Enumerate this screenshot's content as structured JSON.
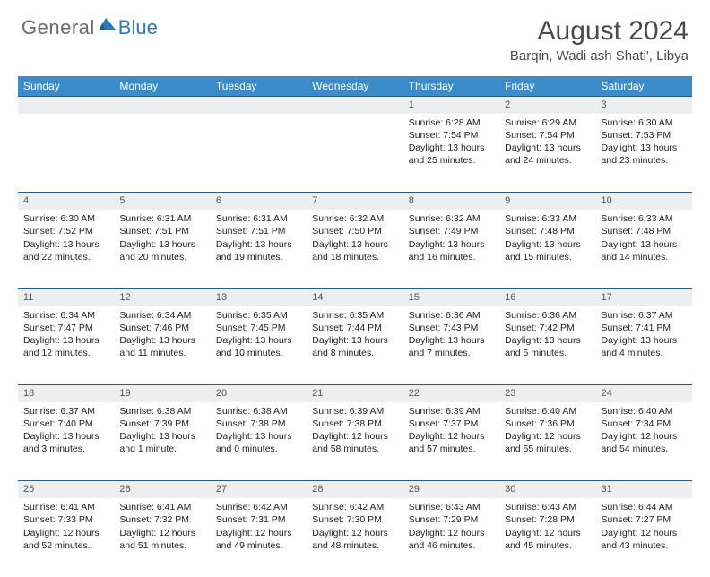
{
  "brand": {
    "part1": "General",
    "part2": "Blue"
  },
  "title": "August 2024",
  "location": "Barqin, Wadi ash Shati', Libya",
  "colors": {
    "header_bg": "#3a8bc9",
    "header_text": "#ffffff",
    "daynum_bg": "#eceeef",
    "row_divider": "#2a5b84",
    "brand_gray": "#6b6b6b",
    "brand_blue": "#2a7ab9"
  },
  "weekdays": [
    "Sunday",
    "Monday",
    "Tuesday",
    "Wednesday",
    "Thursday",
    "Friday",
    "Saturday"
  ],
  "weeks": [
    [
      null,
      null,
      null,
      null,
      {
        "n": "1",
        "sunrise": "6:28 AM",
        "sunset": "7:54 PM",
        "daylight": "13 hours and 25 minutes."
      },
      {
        "n": "2",
        "sunrise": "6:29 AM",
        "sunset": "7:54 PM",
        "daylight": "13 hours and 24 minutes."
      },
      {
        "n": "3",
        "sunrise": "6:30 AM",
        "sunset": "7:53 PM",
        "daylight": "13 hours and 23 minutes."
      }
    ],
    [
      {
        "n": "4",
        "sunrise": "6:30 AM",
        "sunset": "7:52 PM",
        "daylight": "13 hours and 22 minutes."
      },
      {
        "n": "5",
        "sunrise": "6:31 AM",
        "sunset": "7:51 PM",
        "daylight": "13 hours and 20 minutes."
      },
      {
        "n": "6",
        "sunrise": "6:31 AM",
        "sunset": "7:51 PM",
        "daylight": "13 hours and 19 minutes."
      },
      {
        "n": "7",
        "sunrise": "6:32 AM",
        "sunset": "7:50 PM",
        "daylight": "13 hours and 18 minutes."
      },
      {
        "n": "8",
        "sunrise": "6:32 AM",
        "sunset": "7:49 PM",
        "daylight": "13 hours and 16 minutes."
      },
      {
        "n": "9",
        "sunrise": "6:33 AM",
        "sunset": "7:48 PM",
        "daylight": "13 hours and 15 minutes."
      },
      {
        "n": "10",
        "sunrise": "6:33 AM",
        "sunset": "7:48 PM",
        "daylight": "13 hours and 14 minutes."
      }
    ],
    [
      {
        "n": "11",
        "sunrise": "6:34 AM",
        "sunset": "7:47 PM",
        "daylight": "13 hours and 12 minutes."
      },
      {
        "n": "12",
        "sunrise": "6:34 AM",
        "sunset": "7:46 PM",
        "daylight": "13 hours and 11 minutes."
      },
      {
        "n": "13",
        "sunrise": "6:35 AM",
        "sunset": "7:45 PM",
        "daylight": "13 hours and 10 minutes."
      },
      {
        "n": "14",
        "sunrise": "6:35 AM",
        "sunset": "7:44 PM",
        "daylight": "13 hours and 8 minutes."
      },
      {
        "n": "15",
        "sunrise": "6:36 AM",
        "sunset": "7:43 PM",
        "daylight": "13 hours and 7 minutes."
      },
      {
        "n": "16",
        "sunrise": "6:36 AM",
        "sunset": "7:42 PM",
        "daylight": "13 hours and 5 minutes."
      },
      {
        "n": "17",
        "sunrise": "6:37 AM",
        "sunset": "7:41 PM",
        "daylight": "13 hours and 4 minutes."
      }
    ],
    [
      {
        "n": "18",
        "sunrise": "6:37 AM",
        "sunset": "7:40 PM",
        "daylight": "13 hours and 3 minutes."
      },
      {
        "n": "19",
        "sunrise": "6:38 AM",
        "sunset": "7:39 PM",
        "daylight": "13 hours and 1 minute."
      },
      {
        "n": "20",
        "sunrise": "6:38 AM",
        "sunset": "7:38 PM",
        "daylight": "13 hours and 0 minutes."
      },
      {
        "n": "21",
        "sunrise": "6:39 AM",
        "sunset": "7:38 PM",
        "daylight": "12 hours and 58 minutes."
      },
      {
        "n": "22",
        "sunrise": "6:39 AM",
        "sunset": "7:37 PM",
        "daylight": "12 hours and 57 minutes."
      },
      {
        "n": "23",
        "sunrise": "6:40 AM",
        "sunset": "7:36 PM",
        "daylight": "12 hours and 55 minutes."
      },
      {
        "n": "24",
        "sunrise": "6:40 AM",
        "sunset": "7:34 PM",
        "daylight": "12 hours and 54 minutes."
      }
    ],
    [
      {
        "n": "25",
        "sunrise": "6:41 AM",
        "sunset": "7:33 PM",
        "daylight": "12 hours and 52 minutes."
      },
      {
        "n": "26",
        "sunrise": "6:41 AM",
        "sunset": "7:32 PM",
        "daylight": "12 hours and 51 minutes."
      },
      {
        "n": "27",
        "sunrise": "6:42 AM",
        "sunset": "7:31 PM",
        "daylight": "12 hours and 49 minutes."
      },
      {
        "n": "28",
        "sunrise": "6:42 AM",
        "sunset": "7:30 PM",
        "daylight": "12 hours and 48 minutes."
      },
      {
        "n": "29",
        "sunrise": "6:43 AM",
        "sunset": "7:29 PM",
        "daylight": "12 hours and 46 minutes."
      },
      {
        "n": "30",
        "sunrise": "6:43 AM",
        "sunset": "7:28 PM",
        "daylight": "12 hours and 45 minutes."
      },
      {
        "n": "31",
        "sunrise": "6:44 AM",
        "sunset": "7:27 PM",
        "daylight": "12 hours and 43 minutes."
      }
    ]
  ],
  "labels": {
    "sunrise": "Sunrise: ",
    "sunset": "Sunset: ",
    "daylight": "Daylight: "
  }
}
